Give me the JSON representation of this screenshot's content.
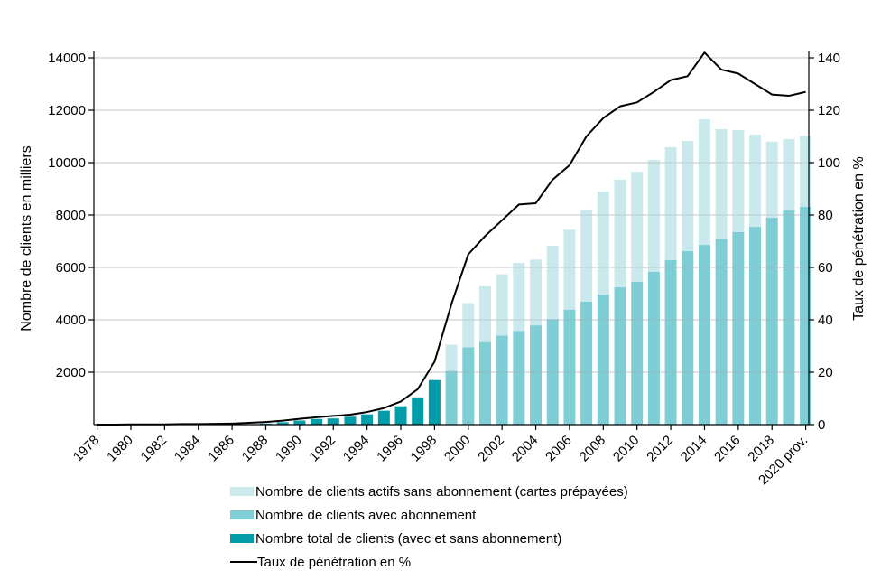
{
  "axes": {
    "y_left_title": "Nombre de clients en milliers",
    "y_right_title": "Taux de pénétration en %",
    "y_left_ticks": [
      2000,
      4000,
      6000,
      8000,
      10000,
      12000,
      14000
    ],
    "y_right_ticks": [
      0,
      20,
      40,
      60,
      80,
      100,
      120,
      140
    ],
    "x_tick_labels": [
      "1978",
      "1980",
      "1982",
      "1984",
      "1986",
      "1988",
      "1990",
      "1992",
      "1994",
      "1996",
      "1998",
      "2000",
      "2002",
      "2004",
      "2006",
      "2008",
      "2010",
      "2012",
      "2014",
      "2016",
      "2018",
      "2020 prov."
    ]
  },
  "colors": {
    "prepaid_light": "#c9e9ec",
    "subscription_medium": "#7fced6",
    "total_dark": "#009ca8",
    "line": "#000000",
    "grid": "#d9d9d9",
    "axis": "#000000",
    "background": "#ffffff"
  },
  "legend": {
    "items": [
      {
        "label": "Nombre de clients actifs sans abonnement (cartes prépayées)",
        "type": "swatch",
        "color": "#c9e9ec"
      },
      {
        "label": "Nombre de clients avec abonnement",
        "type": "swatch",
        "color": "#7fced6"
      },
      {
        "label": "Nombre total de clients (avec et sans abonnement)",
        "type": "swatch",
        "color": "#009ca8"
      },
      {
        "label": "Taux de pénétration en %",
        "type": "line",
        "color": "#000000"
      }
    ]
  },
  "chart_data": {
    "type": "combo-bar-line",
    "x": [
      1978,
      1979,
      1980,
      1981,
      1982,
      1983,
      1984,
      1985,
      1986,
      1987,
      1988,
      1989,
      1990,
      1991,
      1992,
      1993,
      1994,
      1995,
      1996,
      1997,
      1998,
      1999,
      2000,
      2001,
      2002,
      2003,
      2004,
      2005,
      2006,
      2007,
      2008,
      2009,
      2010,
      2011,
      2012,
      2013,
      2014,
      2015,
      2016,
      2017,
      2018,
      2019,
      2020
    ],
    "x_last_label": "2020 prov.",
    "ylim_left": [
      0,
      14000
    ],
    "ylim_right": [
      0,
      140
    ],
    "grid": "horizontal",
    "legend_position": "bottom",
    "series": [
      {
        "name": "Nombre total de clients (avec et sans abonnement)",
        "type": "bar",
        "axis": "left",
        "color": "#009ca8",
        "values": [
          null,
          null,
          null,
          null,
          null,
          null,
          null,
          null,
          null,
          null,
          40,
          90,
          155,
          215,
          235,
          300,
          390,
          530,
          700,
          1040,
          1700,
          null,
          null,
          null,
          null,
          null,
          null,
          null,
          null,
          null,
          null,
          null,
          null,
          null,
          null,
          null,
          null,
          null,
          null,
          null,
          null,
          null,
          null
        ]
      },
      {
        "name": "Nombre de clients avec abonnement",
        "type": "bar-stacked-bottom",
        "axis": "left",
        "color": "#7fced6",
        "values": [
          null,
          null,
          null,
          null,
          null,
          null,
          null,
          null,
          null,
          null,
          null,
          null,
          null,
          null,
          null,
          null,
          null,
          null,
          null,
          null,
          null,
          2050,
          2950,
          3150,
          3400,
          3580,
          3790,
          4030,
          4390,
          4690,
          4970,
          5240,
          5450,
          5830,
          6280,
          6620,
          6860,
          7100,
          7350,
          7550,
          7900,
          8170,
          8310
        ]
      },
      {
        "name": "Nombre de clients actifs sans abonnement (cartes prépayées)",
        "type": "bar-stacked-top",
        "axis": "left",
        "color": "#c9e9ec",
        "values": [
          null,
          null,
          null,
          null,
          null,
          null,
          null,
          null,
          null,
          null,
          null,
          null,
          null,
          null,
          null,
          null,
          null,
          null,
          null,
          null,
          null,
          1000,
          1690,
          2130,
          2340,
          2590,
          2510,
          2800,
          3050,
          3520,
          3920,
          4110,
          4200,
          4270,
          4310,
          4210,
          4790,
          4180,
          3890,
          3520,
          2900,
          2730,
          2720
        ]
      },
      {
        "name": "Taux de pénétration en %",
        "type": "line",
        "axis": "right",
        "color": "#000000",
        "values": [
          0,
          0,
          0.1,
          0.1,
          0.1,
          0.2,
          0.2,
          0.3,
          0.4,
          0.7,
          1.0,
          1.5,
          2.2,
          2.8,
          3.3,
          3.8,
          4.8,
          6.3,
          8.8,
          13.5,
          24,
          46,
          65,
          72,
          78,
          84,
          84.5,
          93.5,
          99,
          110,
          117,
          121.5,
          123,
          127,
          131.5,
          133,
          142,
          135.5,
          134,
          130,
          126,
          125.5,
          127
        ]
      }
    ]
  }
}
